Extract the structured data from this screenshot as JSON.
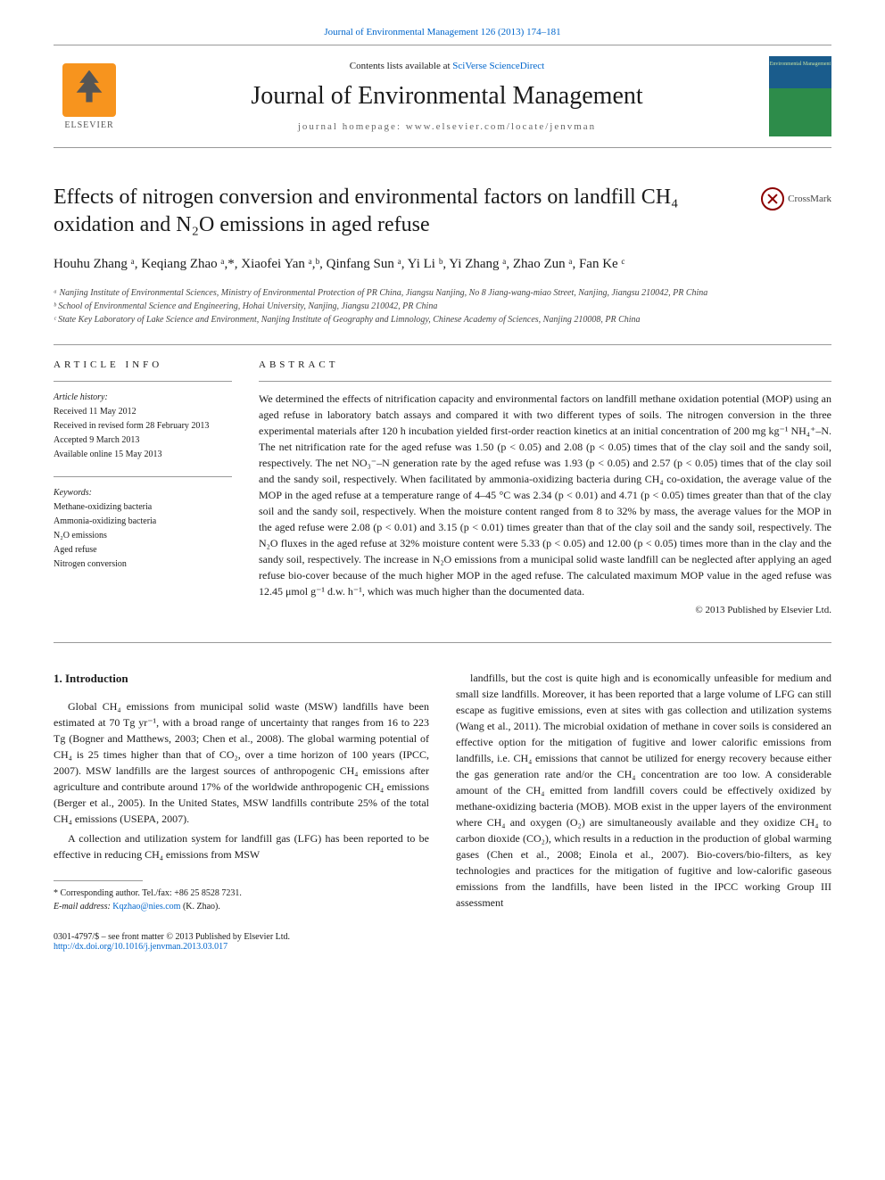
{
  "top_link": "Journal of Environmental Management 126 (2013) 174–181",
  "header": {
    "contents_prefix": "Contents lists available at ",
    "contents_link": "SciVerse ScienceDirect",
    "journal_name": "Journal of Environmental Management",
    "homepage_prefix": "journal homepage: ",
    "homepage_url": "www.elsevier.com/locate/jenvman",
    "elsevier_label": "ELSEVIER",
    "cover_label": "Environmental Management"
  },
  "crossmark": "CrossMark",
  "title": "Effects of nitrogen conversion and environmental factors on landfill CH₄ oxidation and N₂O emissions in aged refuse",
  "authors": "Houhu Zhang ᵃ, Keqiang Zhao ᵃ,*, Xiaofei Yan ᵃ,ᵇ, Qinfang Sun ᵃ, Yi Li ᵇ, Yi Zhang ᵃ, Zhao Zun ᵃ, Fan Ke ᶜ",
  "affiliations": {
    "a": "ᵃ Nanjing Institute of Environmental Sciences, Ministry of Environmental Protection of PR China, Jiangsu Nanjing, No 8 Jiang-wang-miao Street, Nanjing, Jiangsu 210042, PR China",
    "b": "ᵇ School of Environmental Science and Engineering, Hohai University, Nanjing, Jiangsu 210042, PR China",
    "c": "ᶜ State Key Laboratory of Lake Science and Environment, Nanjing Institute of Geography and Limnology, Chinese Academy of Sciences, Nanjing 210008, PR China"
  },
  "article_info": {
    "heading": "ARTICLE INFO",
    "history_label": "Article history:",
    "received": "Received 11 May 2012",
    "revised": "Received in revised form 28 February 2013",
    "accepted": "Accepted 9 March 2013",
    "online": "Available online 15 May 2013",
    "keywords_label": "Keywords:",
    "kw1": "Methane-oxidizing bacteria",
    "kw2": "Ammonia-oxidizing bacteria",
    "kw3": "N₂O emissions",
    "kw4": "Aged refuse",
    "kw5": "Nitrogen conversion"
  },
  "abstract": {
    "heading": "ABSTRACT",
    "text": "We determined the effects of nitrification capacity and environmental factors on landfill methane oxidation potential (MOP) using an aged refuse in laboratory batch assays and compared it with two different types of soils. The nitrogen conversion in the three experimental materials after 120 h incubation yielded first-order reaction kinetics at an initial concentration of 200 mg kg⁻¹ NH₄⁺–N. The net nitrification rate for the aged refuse was 1.50 (p < 0.05) and 2.08 (p < 0.05) times that of the clay soil and the sandy soil, respectively. The net NO₃⁻–N generation rate by the aged refuse was 1.93 (p < 0.05) and 2.57 (p < 0.05) times that of the clay soil and the sandy soil, respectively. When facilitated by ammonia-oxidizing bacteria during CH₄ co-oxidation, the average value of the MOP in the aged refuse at a temperature range of 4–45 °C was 2.34 (p < 0.01) and 4.71 (p < 0.05) times greater than that of the clay soil and the sandy soil, respectively. When the moisture content ranged from 8 to 32% by mass, the average values for the MOP in the aged refuse were 2.08 (p < 0.01) and 3.15 (p < 0.01) times greater than that of the clay soil and the sandy soil, respectively. The N₂O fluxes in the aged refuse at 32% moisture content were 5.33 (p < 0.05) and 12.00 (p < 0.05) times more than in the clay and the sandy soil, respectively. The increase in N₂O emissions from a municipal solid waste landfill can be neglected after applying an aged refuse bio-cover because of the much higher MOP in the aged refuse. The calculated maximum MOP value in the aged refuse was 12.45 μmol g⁻¹ d.w. h⁻¹, which was much higher than the documented data.",
    "copyright": "© 2013 Published by Elsevier Ltd."
  },
  "intro": {
    "heading": "1. Introduction",
    "p1": "Global CH₄ emissions from municipal solid waste (MSW) landfills have been estimated at 70 Tg yr⁻¹, with a broad range of uncertainty that ranges from 16 to 223 Tg (Bogner and Matthews, 2003; Chen et al., 2008). The global warming potential of CH₄ is 25 times higher than that of CO₂, over a time horizon of 100 years (IPCC, 2007). MSW landfills are the largest sources of anthropogenic CH₄ emissions after agriculture and contribute around 17% of the worldwide anthropogenic CH₄ emissions (Berger et al., 2005). In the United States, MSW landfills contribute 25% of the total CH₄ emissions (USEPA, 2007).",
    "p2": "A collection and utilization system for landfill gas (LFG) has been reported to be effective in reducing CH₄ emissions from MSW",
    "p3": "landfills, but the cost is quite high and is economically unfeasible for medium and small size landfills. Moreover, it has been reported that a large volume of LFG can still escape as fugitive emissions, even at sites with gas collection and utilization systems (Wang et al., 2011). The microbial oxidation of methane in cover soils is considered an effective option for the mitigation of fugitive and lower calorific emissions from landfills, i.e. CH₄ emissions that cannot be utilized for energy recovery because either the gas generation rate and/or the CH₄ concentration are too low. A considerable amount of the CH₄ emitted from landfill covers could be effectively oxidized by methane-oxidizing bacteria (MOB). MOB exist in the upper layers of the environment where CH₄ and oxygen (O₂) are simultaneously available and they oxidize CH₄ to carbon dioxide (CO₂), which results in a reduction in the production of global warming gases (Chen et al., 2008; Einola et al., 2007). Bio-covers/bio-filters, as key technologies and practices for the mitigation of fugitive and low-calorific gaseous emissions from the landfills, have been listed in the IPCC working Group III assessment"
  },
  "footnotes": {
    "corr": "* Corresponding author. Tel./fax: +86 25 8528 7231.",
    "email_label": "E-mail address: ",
    "email": "Kqzhao@nies.com",
    "email_suffix": " (K. Zhao)."
  },
  "bottom": {
    "line1": "0301-4797/$ – see front matter © 2013 Published by Elsevier Ltd.",
    "doi": "http://dx.doi.org/10.1016/j.jenvman.2013.03.017"
  },
  "colors": {
    "link": "#0066cc",
    "elsevier_orange": "#f7941e",
    "cover_top": "#1a5c8c",
    "cover_bottom": "#2d8c4a",
    "crossmark_red": "#8b0000"
  }
}
